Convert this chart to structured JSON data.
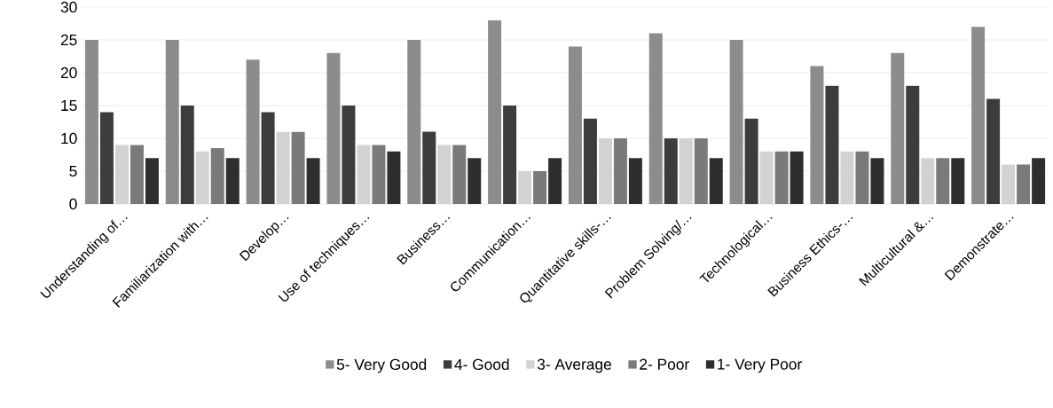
{
  "chart_data": {
    "type": "bar",
    "categories": [
      "Understanding of…",
      "Familiarization with…",
      "Develop…",
      "Use of techniques…",
      "Business…",
      "Communication…",
      "Quantitative skills-…",
      "Problem Solving/…",
      "Technological…",
      "Business Ethics-…",
      "Multicultural &…",
      "Demonstrate…"
    ],
    "series": [
      {
        "name": "5- Very Good",
        "color": "#8c8c8c",
        "values": [
          25,
          25,
          22,
          23,
          25,
          28,
          24,
          26,
          25,
          21,
          23,
          27
        ]
      },
      {
        "name": "4- Good",
        "color": "#3c3c3c",
        "values": [
          14,
          15,
          14,
          15,
          11,
          15,
          13,
          10,
          13,
          18,
          18,
          16
        ]
      },
      {
        "name": "3- Average",
        "color": "#d2d2d2",
        "values": [
          9,
          8,
          11,
          9,
          9,
          5,
          10,
          10,
          8,
          8,
          7,
          6
        ]
      },
      {
        "name": "2- Poor",
        "color": "#7a7a7a",
        "values": [
          9,
          8.5,
          11,
          9,
          9,
          5,
          10,
          10,
          8,
          8,
          7,
          6
        ]
      },
      {
        "name": "1- Very Poor",
        "color": "#2e2e2e",
        "values": [
          7,
          7,
          7,
          8,
          7,
          7,
          7,
          7,
          8,
          7,
          7,
          7
        ]
      }
    ],
    "ylim": [
      0,
      30
    ],
    "yticks": [
      0,
      5,
      10,
      15,
      20,
      25,
      30
    ],
    "grid": "y",
    "legend": "bottom"
  }
}
